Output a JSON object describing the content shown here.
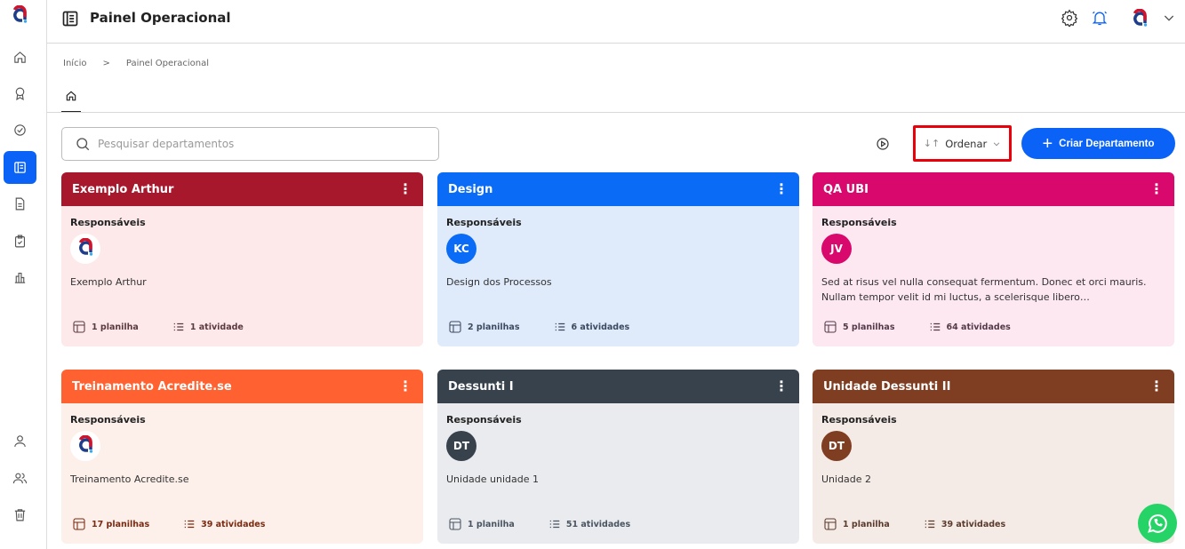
{
  "header": {
    "title": "Painel Operacional"
  },
  "breadcrumb": [
    "Início",
    ">",
    "Painel Operacional"
  ],
  "search": {
    "placeholder": "Pesquisar departamentos",
    "value": ""
  },
  "toolbar": {
    "order_label": "Ordenar",
    "create_label": "Criar Departamento"
  },
  "colors": {
    "accent": "#0a63f6",
    "highlight": "#e8000b"
  },
  "responsaveis_label": "Responsáveis",
  "cards": [
    {
      "title": "Exemplo Arthur",
      "header_color": "#a8182c",
      "bg": "#fde8ea",
      "text_color": "#5a3a3e",
      "avatar": "logo",
      "avatar_color": "#fff",
      "description": "Exemplo Arthur",
      "sheets": "1 planilha",
      "activities": "1 atividade"
    },
    {
      "title": "Design",
      "header_color": "#0a6bf6",
      "bg": "#dfeafb",
      "text_color": "#3b4a60",
      "avatar": "KC",
      "avatar_color": "#0a6bf6",
      "description": "Design dos Processos",
      "sheets": "2 planilhas",
      "activities": "6 atividades"
    },
    {
      "title": "QA UBI",
      "header_color": "#d8086c",
      "bg": "#fde7f1",
      "text_color": "#553a48",
      "avatar": "JV",
      "avatar_color": "#d8086c",
      "description": "Sed at risus vel nulla consequat fermentum. Donec et orci mauris. Nullam tempor velit id mi luctus, a scelerisque libero…",
      "sheets": "5 planilhas",
      "activities": "64 atividades"
    },
    {
      "title": "Treinamento Acredite.se",
      "header_color": "#ff6230",
      "bg": "#fdf0ea",
      "text_color": "#7a2a10",
      "avatar": "logo",
      "avatar_color": "#fff",
      "description": "Treinamento Acredite.se",
      "sheets": "17 planilhas",
      "activities": "39 atividades"
    },
    {
      "title": "Dessunti I",
      "header_color": "#37424d",
      "bg": "#e9ebee",
      "text_color": "#4a5562",
      "avatar": "DT",
      "avatar_color": "#37424d",
      "description": "Unidade unidade 1",
      "sheets": "1 planilha",
      "activities": "51 atividades"
    },
    {
      "title": "Unidade Dessunti II",
      "header_color": "#7f3d22",
      "bg": "#f5ebe6",
      "text_color": "#5a3a2c",
      "avatar": "DT",
      "avatar_color": "#7f3d22",
      "description": "Unidade 2",
      "sheets": "1 planilha",
      "activities": "39 atividades"
    }
  ]
}
